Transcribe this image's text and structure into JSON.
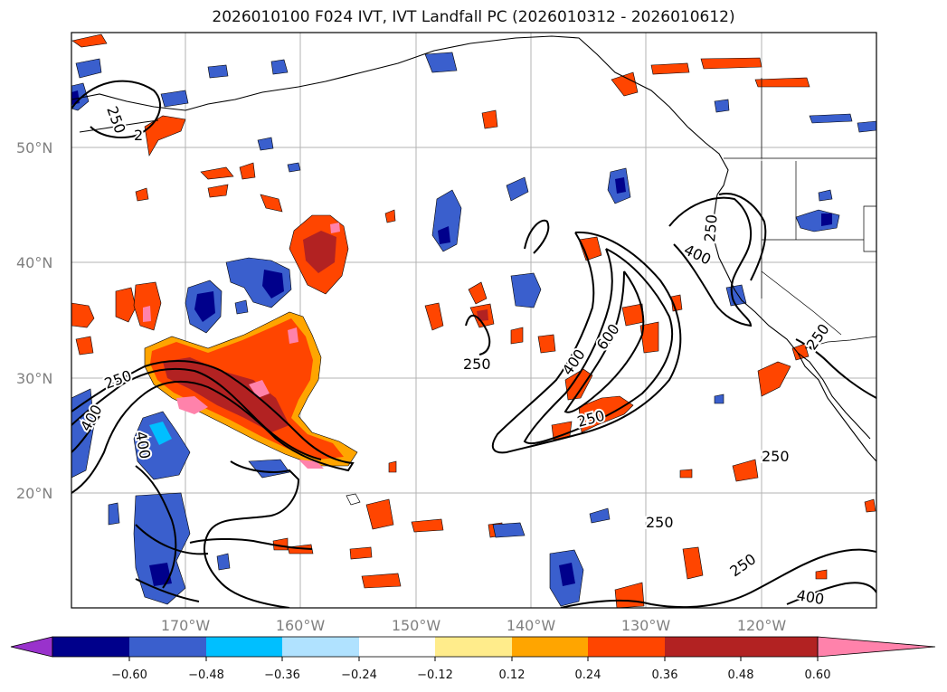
{
  "title": "2026010100 F024 IVT, IVT Landfall PC (2026010312 - 2026010612)",
  "lat_labels": [
    "50°N",
    "40°N",
    "30°N",
    "20°N"
  ],
  "lon_labels": [
    "170°W",
    "160°W",
    "150°W",
    "140°W",
    "130°W",
    "120°W"
  ],
  "contour_labels": [
    "250",
    "2",
    "250",
    "400",
    "400",
    "250",
    "400",
    "600",
    "250",
    "400",
    "250",
    "250",
    "250",
    "250",
    "250",
    "400"
  ],
  "colorbar": {
    "ticks": [
      "−0.60",
      "−0.48",
      "−0.36",
      "−0.24",
      "−0.12",
      "0.12",
      "0.24",
      "0.36",
      "0.48",
      "0.60"
    ],
    "colors": [
      "#9932cc",
      "#00008b",
      "#3a5fcd",
      "#00bfff",
      "#b0e2ff",
      "#ffffff",
      "#ffec8b",
      "#ffa500",
      "#ff4500",
      "#b22222",
      "#ff82ab"
    ]
  },
  "map_colors": {
    "neg_strong": "#00008b",
    "neg_mid": "#3a5fcd",
    "neg_light": "#00bfff",
    "neg_pale": "#b0e2ff",
    "pos_pale": "#ffec8b",
    "pos_mid": "#ffa500",
    "pos_strong": "#ff4500",
    "pos_dark": "#b22222",
    "pos_max": "#ff82ab"
  }
}
